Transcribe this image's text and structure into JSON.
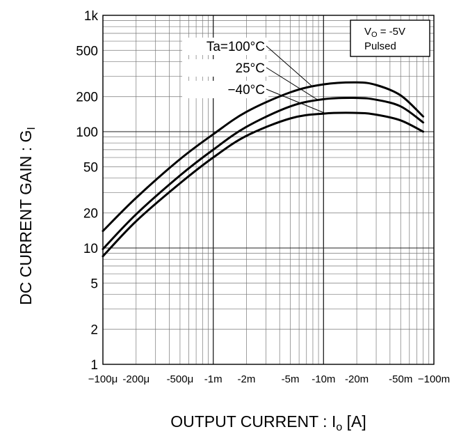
{
  "chart_data": {
    "type": "line",
    "xscale": "log",
    "yscale": "log",
    "grid": true,
    "xlabel": {
      "main": "OUTPUT CURRENT : I",
      "sub": "o",
      "unit": " [A]"
    },
    "ylabel": {
      "main": "DC CURRENT GAIN : G",
      "sub": "I"
    },
    "xlim": [
      0.0001,
      0.1
    ],
    "ylim": [
      1,
      1000
    ],
    "x_axis_direction": "negative currents, magnitude increasing to the right",
    "x_ticks": [
      {
        "value": 0.0001,
        "label": "−100μ"
      },
      {
        "value": 0.0002,
        "label": "-200μ"
      },
      {
        "value": 0.0005,
        "label": "-500μ"
      },
      {
        "value": 0.001,
        "label": "-1m"
      },
      {
        "value": 0.002,
        "label": "-2m"
      },
      {
        "value": 0.005,
        "label": "-5m"
      },
      {
        "value": 0.01,
        "label": "-10m"
      },
      {
        "value": 0.02,
        "label": "-20m"
      },
      {
        "value": 0.05,
        "label": "-50m"
      },
      {
        "value": 0.1,
        "label": "−100m"
      }
    ],
    "y_ticks": [
      {
        "value": 1000,
        "label": "1k"
      },
      {
        "value": 500,
        "label": "500"
      },
      {
        "value": 200,
        "label": "200"
      },
      {
        "value": 100,
        "label": "100"
      },
      {
        "value": 50,
        "label": "50"
      },
      {
        "value": 20,
        "label": "20"
      },
      {
        "value": 10,
        "label": "10"
      },
      {
        "value": 5,
        "label": "5"
      },
      {
        "value": 2,
        "label": "2"
      },
      {
        "value": 1,
        "label": "1"
      }
    ],
    "series": [
      {
        "name": "Ta=100°C",
        "x": [
          0.0001,
          0.0002,
          0.0005,
          0.001,
          0.002,
          0.005,
          0.01,
          0.02,
          0.03,
          0.05,
          0.08
        ],
        "y": [
          14,
          27,
          58,
          95,
          148,
          218,
          255,
          265,
          252,
          205,
          135
        ]
      },
      {
        "name": "25°C",
        "x": [
          0.0001,
          0.0002,
          0.0005,
          0.001,
          0.002,
          0.005,
          0.01,
          0.02,
          0.03,
          0.05,
          0.08
        ],
        "y": [
          9.8,
          19.5,
          42,
          70,
          110,
          165,
          190,
          195,
          188,
          165,
          120
        ]
      },
      {
        "name": "−40°C",
        "x": [
          0.0001,
          0.0002,
          0.0005,
          0.001,
          0.002,
          0.005,
          0.01,
          0.02,
          0.03,
          0.05,
          0.08
        ],
        "y": [
          8.5,
          17,
          36,
          60,
          92,
          130,
          143,
          145,
          140,
          125,
          100
        ]
      }
    ],
    "annotations": {
      "condition_lines": [
        {
          "main": "V",
          "sub": "O",
          "rest": " = -5V"
        },
        {
          "main": "Pulsed",
          "sub": "",
          "rest": ""
        }
      ]
    }
  }
}
